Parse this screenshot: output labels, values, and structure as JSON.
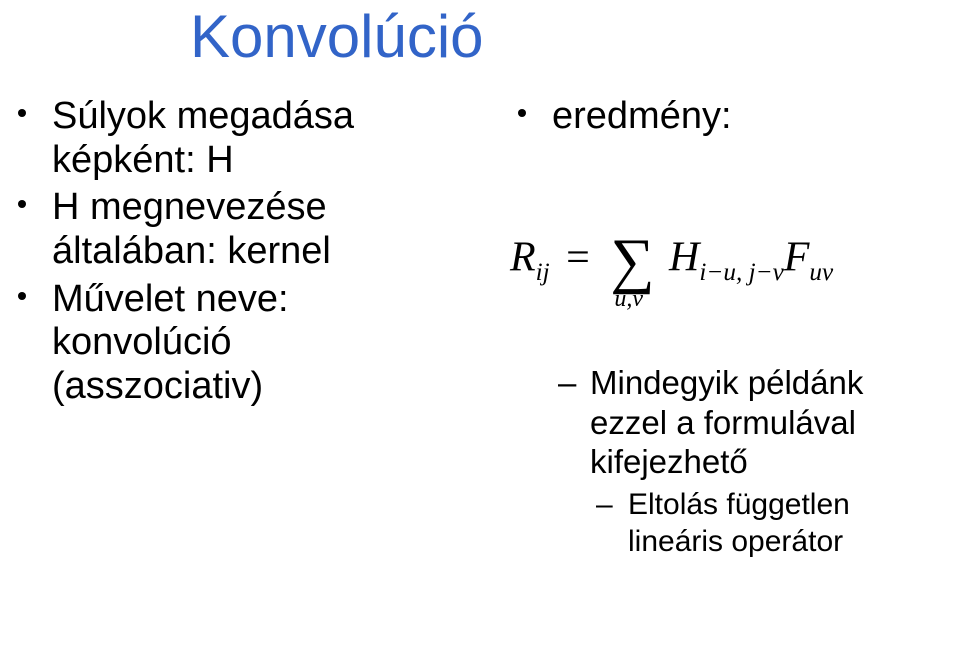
{
  "title": "Konvolúció",
  "left": {
    "b1_l1": "Súlyok megadása",
    "b1_l2": "képként: H",
    "b2_l1": "H megnevezése",
    "b2_l2": "általában: kernel",
    "b3_l1": "Művelet neve:",
    "b3_l2": "konvolúció",
    "b3_l3": "(asszociativ)"
  },
  "right": {
    "b1": "eredmény:",
    "sub_l1": "Mindegyik példánk",
    "sub_l2": "ezzel a formulával",
    "sub_l3": "kifejezhető",
    "subsub_l1": "Eltolás független",
    "subsub_l2": "lineáris operátor"
  },
  "formula": {
    "R": "R",
    "ij": "ij",
    "eq": "=",
    "sigma": "∑",
    "uv": "u,v",
    "H": "H",
    "Hsub": "i−u, j−v",
    "F": "F",
    "Fsub": "uv"
  },
  "colors": {
    "title": "#3264c8",
    "text": "#000000",
    "bg": "#ffffff"
  }
}
